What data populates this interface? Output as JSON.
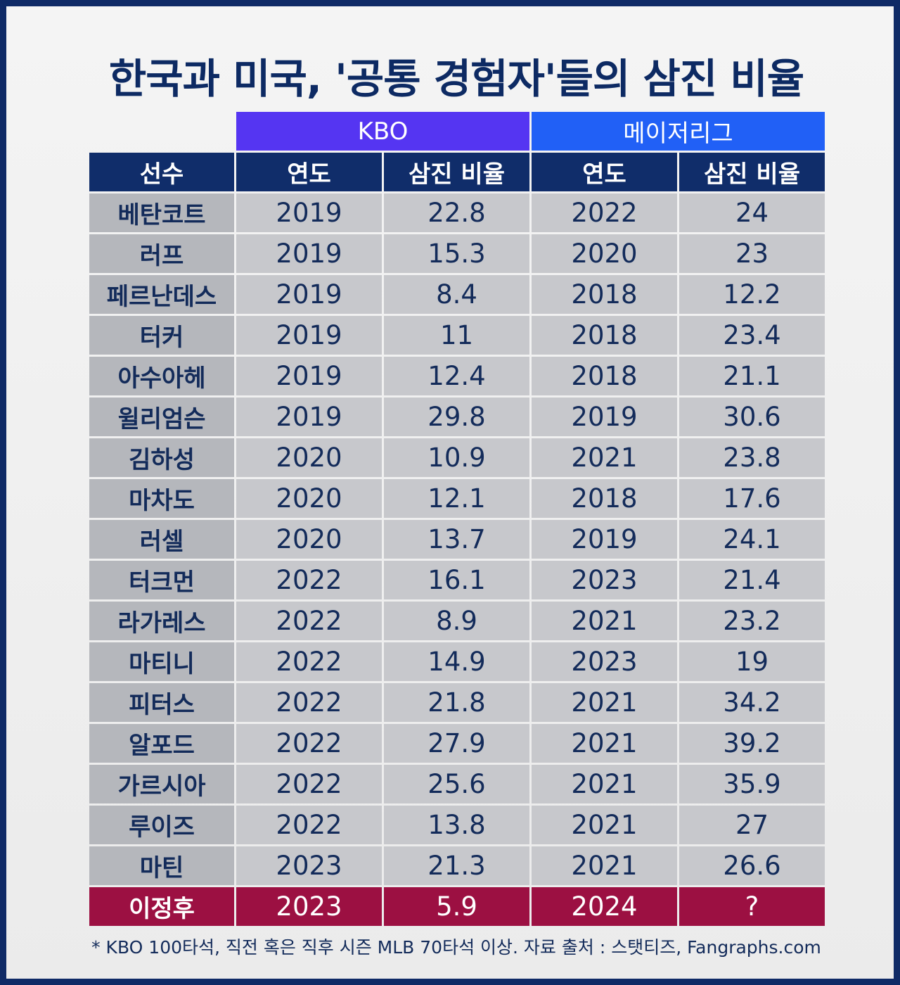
{
  "title": "한국과 미국, '공통 경험자'들의 삼진 비율",
  "chart_data": {
    "type": "table",
    "groups": [
      {
        "label": "KBO"
      },
      {
        "label": "메이저리그"
      }
    ],
    "headers": [
      "선수",
      "연도",
      "삼진 비율",
      "연도",
      "삼진 비율"
    ],
    "rows": [
      [
        "베탄코트",
        "2019",
        "22.8",
        "2022",
        "24"
      ],
      [
        "러프",
        "2019",
        "15.3",
        "2020",
        "23"
      ],
      [
        "페르난데스",
        "2019",
        "8.4",
        "2018",
        "12.2"
      ],
      [
        "터커",
        "2019",
        "11",
        "2018",
        "23.4"
      ],
      [
        "아수아헤",
        "2019",
        "12.4",
        "2018",
        "21.1"
      ],
      [
        "윌리엄슨",
        "2019",
        "29.8",
        "2019",
        "30.6"
      ],
      [
        "김하성",
        "2020",
        "10.9",
        "2021",
        "23.8"
      ],
      [
        "마차도",
        "2020",
        "12.1",
        "2018",
        "17.6"
      ],
      [
        "러셀",
        "2020",
        "13.7",
        "2019",
        "24.1"
      ],
      [
        "터크먼",
        "2022",
        "16.1",
        "2023",
        "21.4"
      ],
      [
        "라가레스",
        "2022",
        "8.9",
        "2021",
        "23.2"
      ],
      [
        "마티니",
        "2022",
        "14.9",
        "2023",
        "19"
      ],
      [
        "피터스",
        "2022",
        "21.8",
        "2021",
        "34.2"
      ],
      [
        "알포드",
        "2022",
        "27.9",
        "2021",
        "39.2"
      ],
      [
        "가르시아",
        "2022",
        "25.6",
        "2021",
        "35.9"
      ],
      [
        "루이즈",
        "2022",
        "13.8",
        "2021",
        "27"
      ],
      [
        "마틴",
        "2023",
        "21.3",
        "2021",
        "26.6"
      ]
    ],
    "highlight_row": [
      "이정후",
      "2023",
      "5.9",
      "2024",
      "?"
    ]
  },
  "footnote": "* KBO 100타석, 직전 혹은 직후 시즌 MLB 70타석 이상. 자료 출처 : 스탯티즈, Fangraphs.com",
  "colors": {
    "frame": "#0f2a66",
    "title": "#0d2a63",
    "kbo_group": "#5535f2",
    "mlb_group": "#2160f6",
    "header": "#102d6a",
    "row": "#c7c8cc",
    "name_cell": "#b5b7bc",
    "highlight": "#9c1042"
  }
}
